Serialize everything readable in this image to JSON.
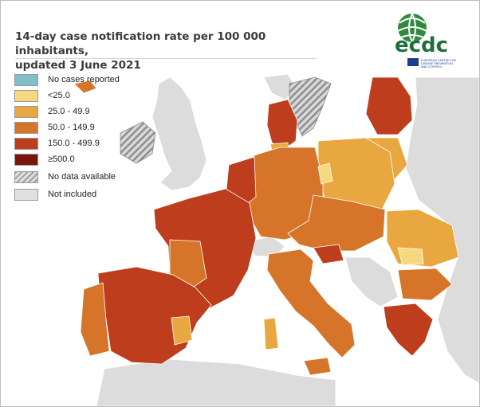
{
  "title_line1": "14-day case notification rate per 100 000 inhabitants,",
  "title_line2": "updated 3 June 2021",
  "logo": {
    "wordmark": "ecdc",
    "subtitle_line1": "EUROPEAN CENTRE FOR",
    "subtitle_line2": "DISEASE PREVENTION",
    "subtitle_line3": "AND CONTROL"
  },
  "legend": [
    {
      "label": "No cases reported",
      "color": "#7fbfc9",
      "pattern": false
    },
    {
      "label": "<25.0",
      "color": "#f6d97f",
      "pattern": false
    },
    {
      "label": "25.0 - 49.9",
      "color": "#e9a83f",
      "pattern": false
    },
    {
      "label": "50.0 - 149.9",
      "color": "#d6752a",
      "pattern": false
    },
    {
      "label": "150.0 - 499.9",
      "color": "#bd3d1d",
      "pattern": false
    },
    {
      "label": "≥500.0",
      "color": "#7a150c",
      "pattern": false
    },
    {
      "label": "No data available",
      "color": "#b4b4b4",
      "pattern": true
    },
    {
      "label": "Not included",
      "color": "#e0e0e0",
      "pattern": false
    }
  ],
  "colors": {
    "sea": "#ffffff",
    "not_included": "#dedede",
    "region_border": "#6a2a12"
  }
}
